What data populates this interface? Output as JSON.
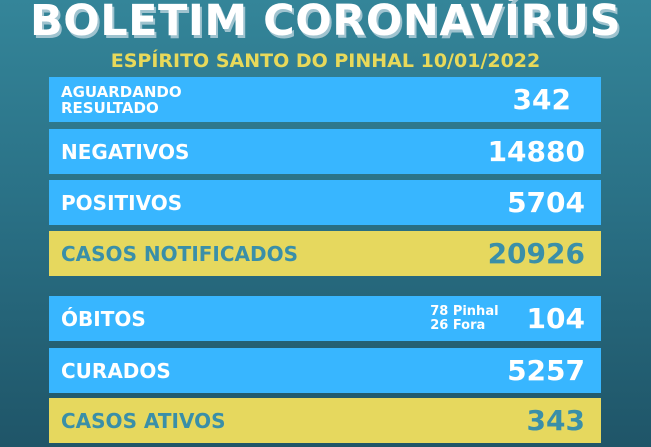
{
  "header": {
    "title": "BOLETIM CORONAVÍRUS",
    "subtitle": "ESPÍRITO SANTO DO PINHAL 10/01/2022"
  },
  "colors": {
    "blue": "#38b6ff",
    "yellow": "#e6d85e",
    "teal_text": "#3a8fa8",
    "subtitle": "#e8d95a"
  },
  "rows": [
    {
      "label_line1": "AGUARDANDO",
      "label_line2": "RESULTADO",
      "value": "342"
    },
    {
      "label": "NEGATIVOS",
      "value": "14880"
    },
    {
      "label": "POSITIVOS",
      "value": "5704"
    },
    {
      "label": "CASOS NOTIFICADOS",
      "value": "20926"
    },
    {
      "label": "ÓBITOS",
      "note_line1": "78 Pinhal",
      "note_line2": "26 Fora",
      "value": "104"
    },
    {
      "label": "CURADOS",
      "value": "5257"
    },
    {
      "label": "CASOS ATIVOS",
      "value": "343"
    }
  ]
}
